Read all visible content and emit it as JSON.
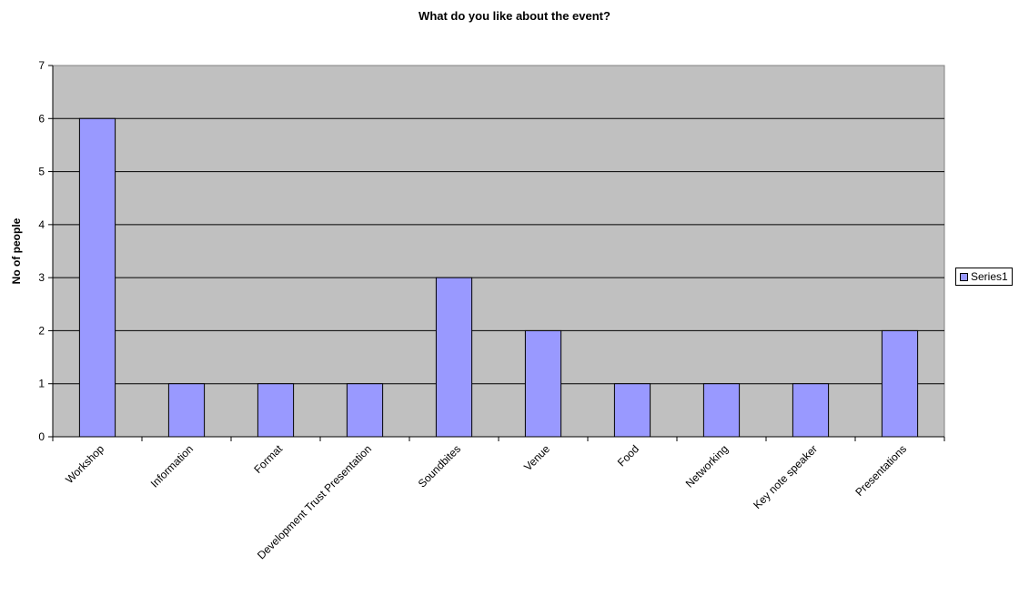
{
  "chart_data": {
    "type": "bar",
    "title": "What do you like about the event?",
    "ylabel": "No of people",
    "xlabel": "",
    "categories": [
      "Workshop",
      "Information",
      "Format",
      "Development Trust Presentation",
      "Soundbites",
      "Venue",
      "Food",
      "Networking",
      "Key note speaker",
      "Presentations"
    ],
    "series": [
      {
        "name": "Series1",
        "values": [
          6,
          1,
          1,
          1,
          3,
          2,
          1,
          1,
          1,
          2
        ]
      }
    ],
    "ylim": [
      0,
      7
    ],
    "yticks": [
      "0",
      "1",
      "2",
      "3",
      "4",
      "5",
      "6",
      "7"
    ],
    "grid": true,
    "legend_position": "right",
    "colors": {
      "bar": "#9999ff",
      "plot_background": "#c0c0c0",
      "gridline": "#000000"
    }
  }
}
